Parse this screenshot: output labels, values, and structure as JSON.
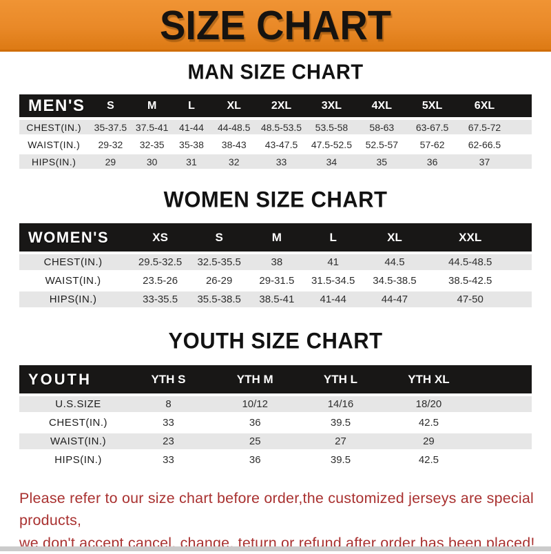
{
  "banner": {
    "title": "SIZE CHART"
  },
  "colors": {
    "banner_orange": "#e98928",
    "header_bar_black": "#181716",
    "row_gray": "#e6e6e6",
    "footer_red": "#a93130",
    "bottom_strip_gray": "#cbcbcb"
  },
  "sections": [
    {
      "title": "MAN SIZE CHART",
      "table": {
        "header_label": "MEN'S",
        "columns": [
          "S",
          "M",
          "L",
          "XL",
          "2XL",
          "3XL",
          "4XL",
          "5XL",
          "6XL"
        ],
        "rows": [
          {
            "label": "CHEST(IN.)",
            "values": [
              "35-37.5",
              "37.5-41",
              "41-44",
              "44-48.5",
              "48.5-53.5",
              "53.5-58",
              "58-63",
              "63-67.5",
              "67.5-72"
            ]
          },
          {
            "label": "WAIST(IN.)",
            "values": [
              "29-32",
              "32-35",
              "35-38",
              "38-43",
              "43-47.5",
              "47.5-52.5",
              "52.5-57",
              "57-62",
              "62-66.5"
            ]
          },
          {
            "label": "HIPS(IN.)",
            "values": [
              "29",
              "30",
              "31",
              "32",
              "33",
              "34",
              "35",
              "36",
              "37"
            ]
          }
        ]
      }
    },
    {
      "title": "WOMEN SIZE CHART",
      "table": {
        "header_label": "WOMEN'S",
        "columns": [
          "XS",
          "S",
          "M",
          "L",
          "XL",
          "XXL"
        ],
        "rows": [
          {
            "label": "CHEST(IN.)",
            "values": [
              "29.5-32.5",
              "32.5-35.5",
              "38",
              "41",
              "44.5",
              "44.5-48.5"
            ]
          },
          {
            "label": "WAIST(IN.)",
            "values": [
              "23.5-26",
              "26-29",
              "29-31.5",
              "31.5-34.5",
              "34.5-38.5",
              "38.5-42.5"
            ]
          },
          {
            "label": "HIPS(IN.)",
            "values": [
              "33-35.5",
              "35.5-38.5",
              "38.5-41",
              "41-44",
              "44-47",
              "47-50"
            ]
          }
        ]
      }
    },
    {
      "title": "YOUTH SIZE CHART",
      "table": {
        "header_label": "YOUTH",
        "columns": [
          "YTH S",
          "YTH M",
          "YTH L",
          "YTH XL"
        ],
        "rows": [
          {
            "label": "U.S.SIZE",
            "values": [
              "8",
              "10/12",
              "14/16",
              "18/20"
            ]
          },
          {
            "label": "CHEST(IN.)",
            "values": [
              "33",
              "36",
              "39.5",
              "42.5"
            ]
          },
          {
            "label": "WAIST(IN.)",
            "values": [
              "23",
              "25",
              "27",
              "29"
            ]
          },
          {
            "label": "HIPS(IN.)",
            "values": [
              "33",
              "36",
              "39.5",
              "42.5"
            ]
          }
        ]
      }
    }
  ],
  "footer": {
    "line1": "Please refer to our size chart before order,the customized jerseys are special products,",
    "line2": "we don't accept cancel, change, teturn or refund after order has been placed!"
  }
}
